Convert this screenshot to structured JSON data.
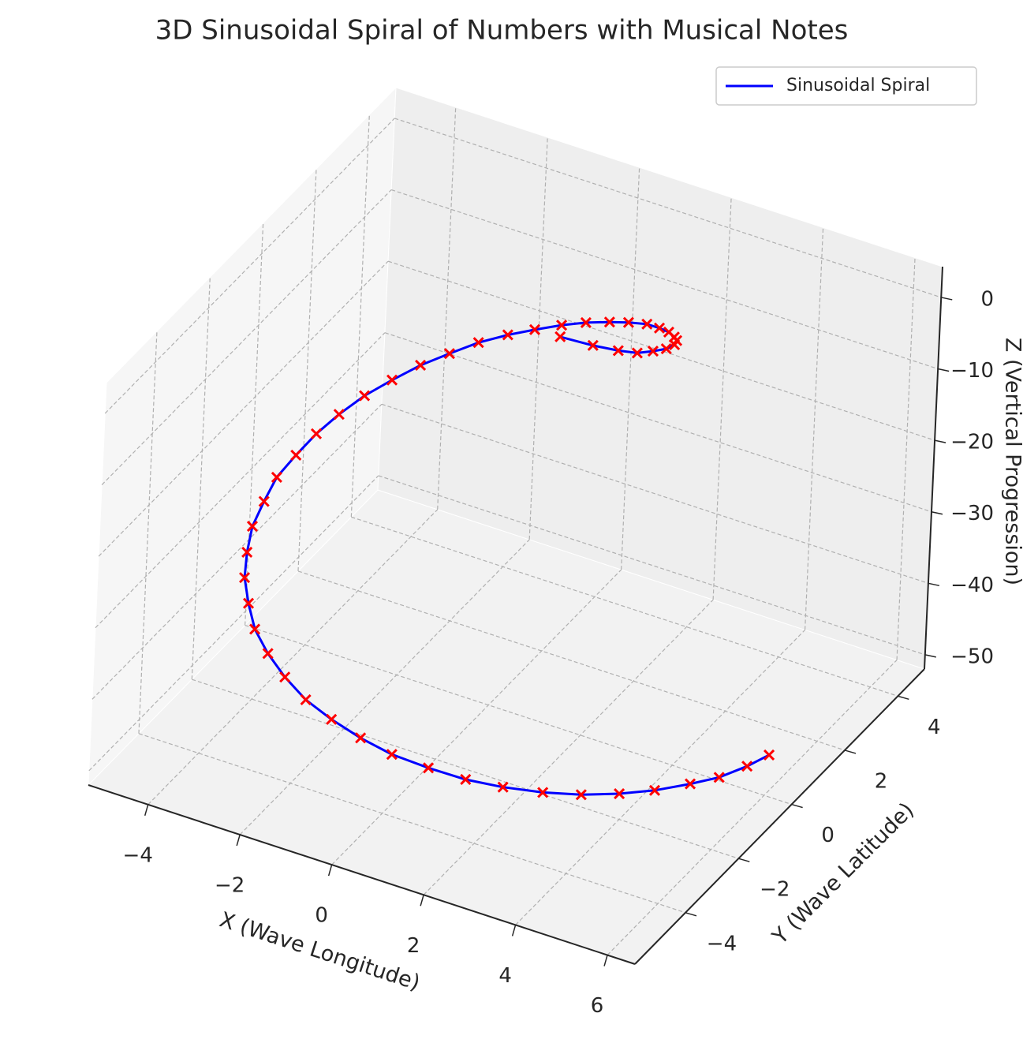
{
  "chart_data": {
    "type": "line3d",
    "title": "3D Sinusoidal Spiral of Numbers with Musical Notes",
    "xlabel": "X (Wave Longitude)",
    "ylabel": "Y (Wave Latitude)",
    "zlabel": "Z (Vertical Progression)",
    "legend": "upper right",
    "grid": true,
    "series": [
      {
        "name": "Sinusoidal Spiral",
        "color": "#0000ff",
        "marker_color": "#ff0000",
        "x": [
          5.65,
          5.58,
          5.41,
          5.16,
          4.79,
          4.37,
          3.87,
          3.31,
          2.69,
          2.06,
          1.37,
          0.66,
          -0.01,
          -0.67,
          -1.3,
          -1.9,
          -2.45,
          -2.95,
          -3.35,
          -3.72,
          -3.98,
          -4.2,
          -4.3,
          -4.36,
          -4.29,
          -4.19,
          -4.02,
          -3.78,
          -3.47,
          -3.13,
          -2.73,
          -2.32,
          -1.84,
          -1.37,
          -0.89,
          -0.42,
          0.07,
          0.51,
          0.95,
          1.33,
          1.66,
          1.94,
          2.16,
          2.3,
          2.34,
          2.27,
          2.15,
          1.92,
          1.53,
          0.96
        ],
        "y": [
          0.77,
          0.05,
          -0.72,
          -1.39,
          -2.1,
          -2.72,
          -3.3,
          -3.79,
          -4.23,
          -4.56,
          -4.78,
          -4.94,
          -4.97,
          -4.94,
          -4.83,
          -4.59,
          -4.29,
          -3.93,
          -3.49,
          -3.01,
          -2.48,
          -1.91,
          -1.31,
          -0.74,
          -0.15,
          0.43,
          0.98,
          1.51,
          2.0,
          2.47,
          2.86,
          3.23,
          3.49,
          3.68,
          3.85,
          3.94,
          3.97,
          3.91,
          3.83,
          3.63,
          3.4,
          3.11,
          2.81,
          2.47,
          2.08,
          1.69,
          1.29,
          0.96,
          0.67,
          0.41
        ],
        "z": [
          -50,
          -49.0,
          -48.0,
          -46.9,
          -45.9,
          -44.9,
          -43.9,
          -42.9,
          -41.8,
          -40.8,
          -39.8,
          -38.8,
          -37.8,
          -36.7,
          -35.7,
          -34.7,
          -33.7,
          -32.7,
          -31.6,
          -30.6,
          -29.6,
          -28.6,
          -27.6,
          -26.5,
          -25.5,
          -24.5,
          -23.5,
          -22.4,
          -21.4,
          -20.4,
          -19.4,
          -18.4,
          -17.3,
          -16.3,
          -15.3,
          -14.3,
          -13.3,
          -12.2,
          -11.2,
          -10.2,
          -9.2,
          -8.2,
          -7.1,
          -6.1,
          -5.1,
          -4.1,
          -3.1,
          -2.0,
          -1.0,
          0
        ]
      }
    ],
    "xlim": [
      -5.3,
      6.6
    ],
    "ylim": [
      -5.9,
      5.0
    ],
    "zlim": [
      -52,
      4.3
    ],
    "xticks": [
      {
        "value": -4,
        "label": "−4"
      },
      {
        "value": -2,
        "label": "−2"
      },
      0,
      2,
      4,
      6
    ],
    "yticks": [
      {
        "value": -4,
        "label": "−4"
      },
      {
        "value": -2,
        "label": "−2"
      },
      0,
      2,
      4
    ],
    "zticks": [
      {
        "value": -50,
        "label": "−50"
      },
      {
        "value": -40,
        "label": "−40"
      },
      {
        "value": -30,
        "label": "−30"
      },
      {
        "value": -20,
        "label": "−20"
      },
      {
        "value": -10,
        "label": "−10"
      },
      0
    ]
  }
}
